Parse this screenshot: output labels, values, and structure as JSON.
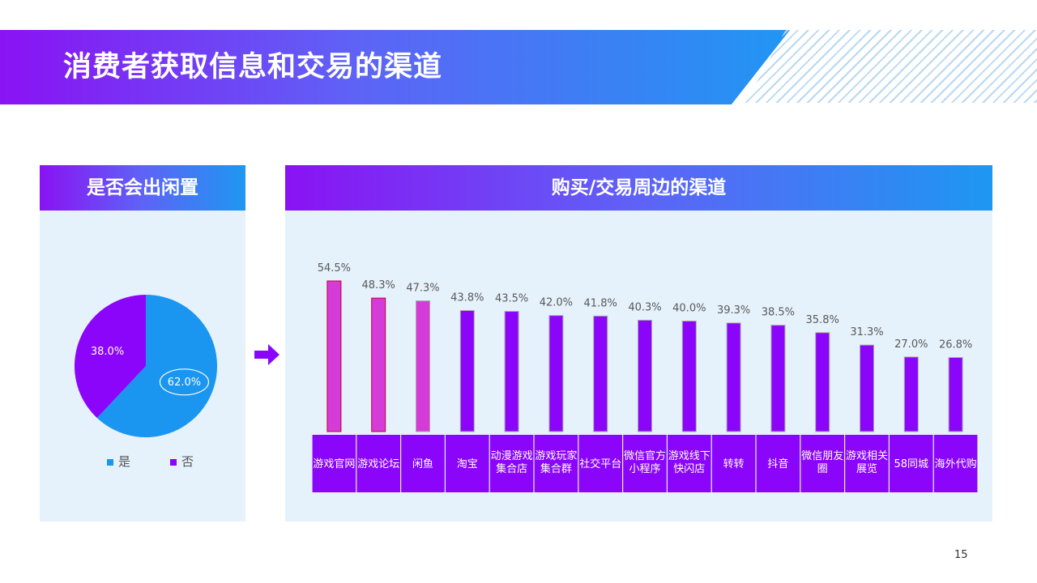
{
  "header": {
    "title": "消费者获取信息和交易的渠道"
  },
  "page_number": "15",
  "colors": {
    "yes": "#1a96f0",
    "no": "#8b05fa",
    "highlight": "#d53bd6",
    "highlight_stroke": "#c0003c",
    "category_box": "#8b05fa"
  },
  "left_panel": {
    "title": "是否会出闲置",
    "legend": [
      {
        "label": "是",
        "color": "#1a96f0"
      },
      {
        "label": "否",
        "color": "#8b05fa"
      }
    ]
  },
  "right_panel": {
    "title": "购买/交易周边的渠道"
  },
  "chart_data": [
    {
      "type": "pie",
      "title": "是否会出闲置",
      "categories": [
        "是",
        "否"
      ],
      "values": [
        62.0,
        38.0
      ],
      "value_labels": [
        "62.0%",
        "38.0%"
      ],
      "legend": "bottom"
    },
    {
      "type": "bar",
      "title": "购买/交易周边的渠道",
      "categories": [
        [
          "游戏官网"
        ],
        [
          "游戏论坛"
        ],
        [
          "闲鱼"
        ],
        [
          "淘宝"
        ],
        [
          "动漫游戏",
          "集合店"
        ],
        [
          "游戏玩家",
          "集合群"
        ],
        [
          "社交平台"
        ],
        [
          "微信官方",
          "小程序"
        ],
        [
          "游戏线下",
          "快闪店"
        ],
        [
          "转转"
        ],
        [
          "抖音"
        ],
        [
          "微信朋友",
          "圈"
        ],
        [
          "游戏相关",
          "展览"
        ],
        [
          "58同城"
        ],
        [
          "海外代购"
        ]
      ],
      "values": [
        54.5,
        48.3,
        47.3,
        43.8,
        43.5,
        42.0,
        41.8,
        40.3,
        40.0,
        39.3,
        38.5,
        35.8,
        31.3,
        27.0,
        26.8
      ],
      "value_labels": [
        "54.5%",
        "48.3%",
        "47.3%",
        "43.8%",
        "43.5%",
        "42.0%",
        "41.8%",
        "40.3%",
        "40.0%",
        "39.3%",
        "38.5%",
        "35.8%",
        "31.3%",
        "27.0%",
        "26.8%"
      ],
      "highlighted": [
        0,
        1,
        2
      ],
      "ylim": [
        0,
        55
      ],
      "grid": false
    }
  ]
}
